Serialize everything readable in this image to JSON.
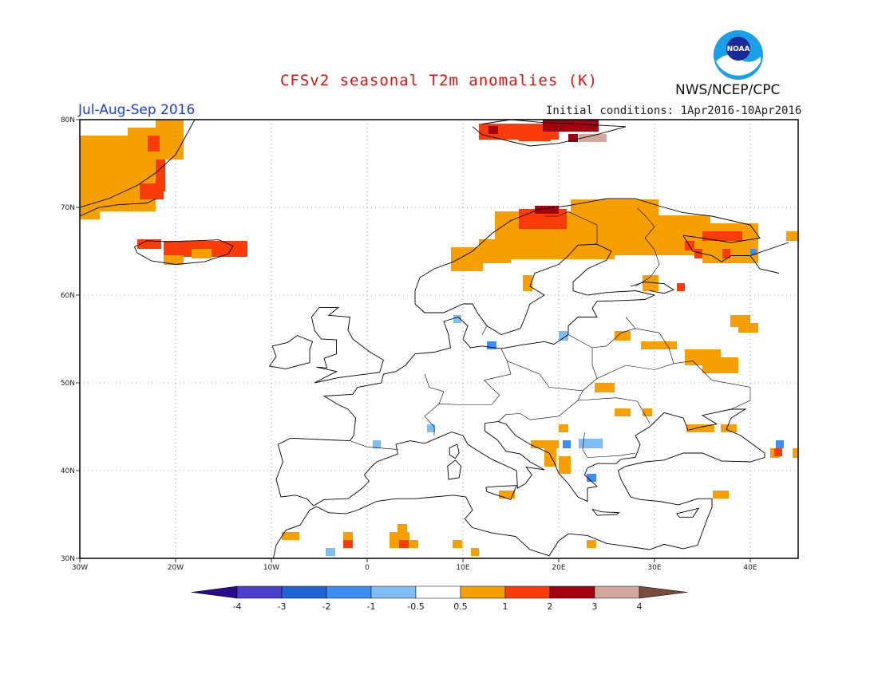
{
  "header": {
    "title": "CFSv2 seasonal T2m anomalies (K)",
    "period": "Jul-Aug-Sep 2016",
    "initial_conditions": "Initial conditions: 1Apr2016-10Apr2016",
    "agency": "NWS/NCEP/CPC",
    "logo_text": "NOAA"
  },
  "axes": {
    "lat_ticks": [
      "80N",
      "70N",
      "60N",
      "50N",
      "40N",
      "30N"
    ],
    "lon_ticks": [
      "30W",
      "20W",
      "10W",
      "0",
      "10E",
      "20E",
      "30E",
      "40E"
    ]
  },
  "colorbar": {
    "labels": [
      "-4",
      "-3",
      "-2",
      "-1",
      "-0.5",
      "0.5",
      "1",
      "2",
      "3",
      "4"
    ],
    "colors": [
      "#2a0a8c",
      "#4a3fcc",
      "#1e64d6",
      "#3c8ff0",
      "#7fbdf5",
      "#ffffff",
      "#f5a000",
      "#fa3c0a",
      "#a5000f",
      "#d2a89a",
      "#7a4a3a"
    ]
  },
  "colors": {
    "c1": "#f5a000",
    "c2": "#fa3c0a",
    "c3": "#a5000f",
    "c4": "#d2a89a",
    "n1": "#7fbdf5",
    "n2": "#3c8ff0"
  }
}
